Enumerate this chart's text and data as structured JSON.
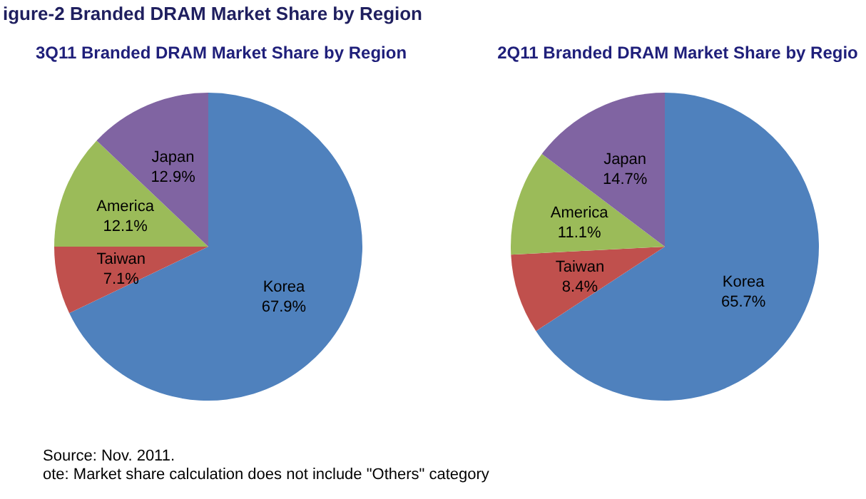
{
  "chart_data": [
    {
      "type": "pie",
      "title": "3Q11 Branded DRAM Market Share by Region",
      "categories": [
        "Korea",
        "Taiwan",
        "America",
        "Japan"
      ],
      "values": [
        67.9,
        7.1,
        12.1,
        12.9
      ],
      "value_labels": [
        "67.9%",
        "7.1%",
        "12.1%",
        "12.9%"
      ],
      "colors": [
        "#4f81bd",
        "#c0504d",
        "#9bbb59",
        "#8064a2"
      ],
      "legend": false,
      "annotations": [
        "igure-2 Branded DRAM Market Share by Region",
        "Source: Nov. 2011.",
        "ote: Market share calculation does not include \"Others\" category"
      ]
    },
    {
      "type": "pie",
      "title": "2Q11 Branded DRAM Market Share by Regio",
      "categories": [
        "Korea",
        "Taiwan",
        "America",
        "Japan"
      ],
      "values": [
        65.7,
        8.4,
        11.1,
        14.7
      ],
      "value_labels": [
        "65.7%",
        "8.4%",
        "11.1%",
        "14.7%"
      ],
      "colors": [
        "#4f81bd",
        "#c0504d",
        "#9bbb59",
        "#8064a2"
      ],
      "legend": false
    }
  ]
}
